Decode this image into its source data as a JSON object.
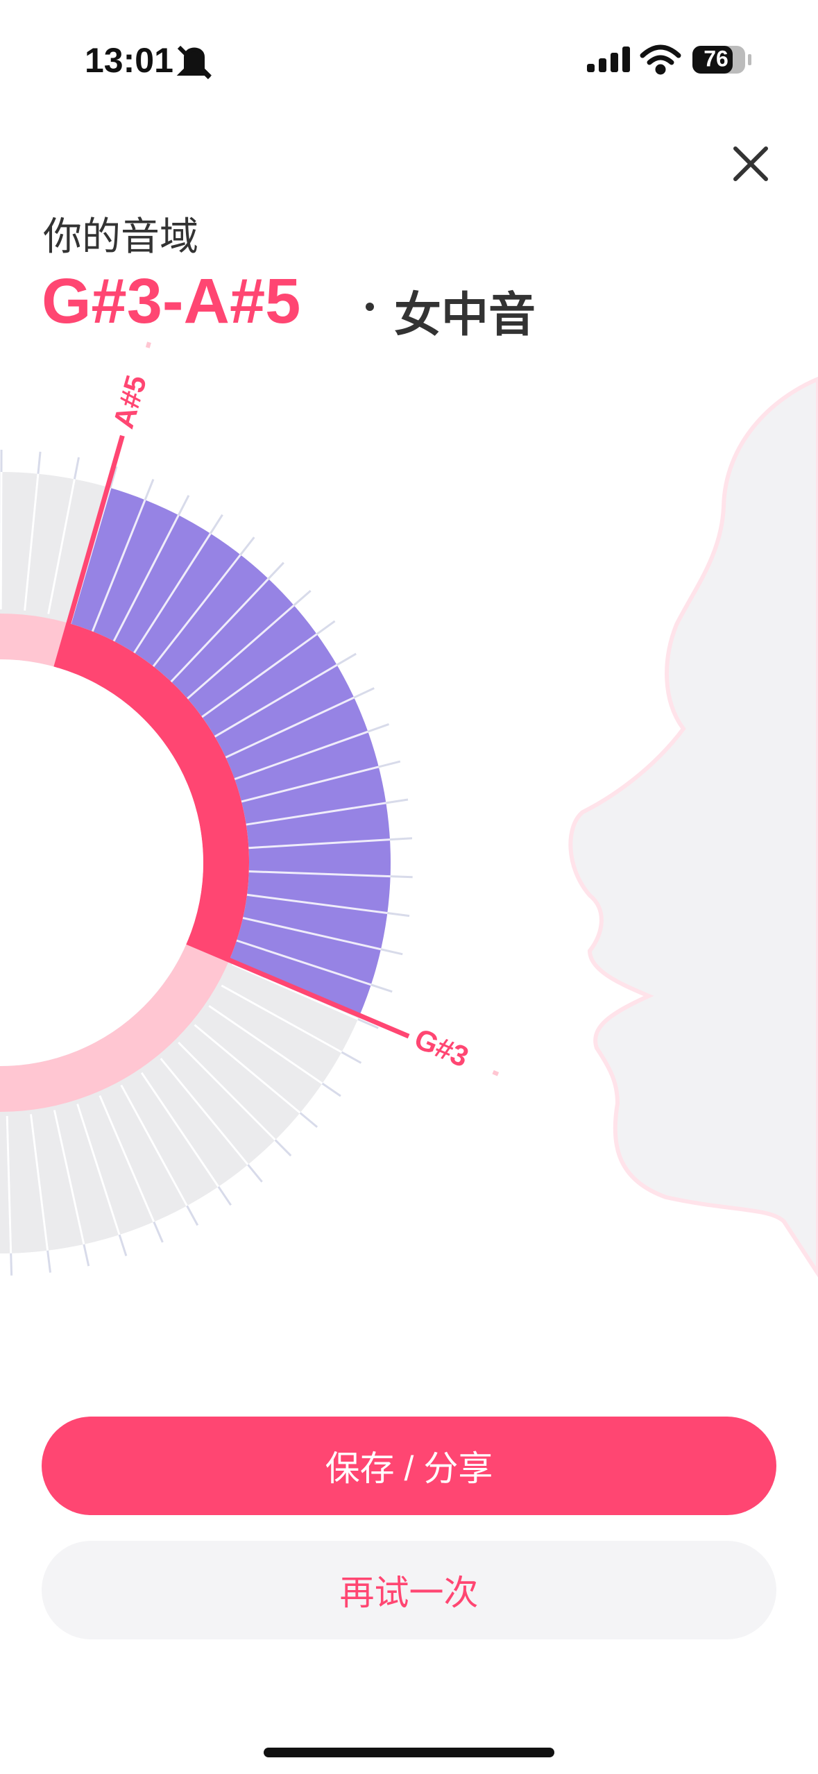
{
  "status": {
    "time": "13:01",
    "battery": "76"
  },
  "header": {
    "subtitle": "你的音域",
    "range": "G#3-A#5",
    "voice_type": "女中音"
  },
  "dial": {
    "high_label": "A#5",
    "low_label": "G#3"
  },
  "buttons": {
    "save": "保存 / 分享",
    "retry": "再试一次"
  }
}
